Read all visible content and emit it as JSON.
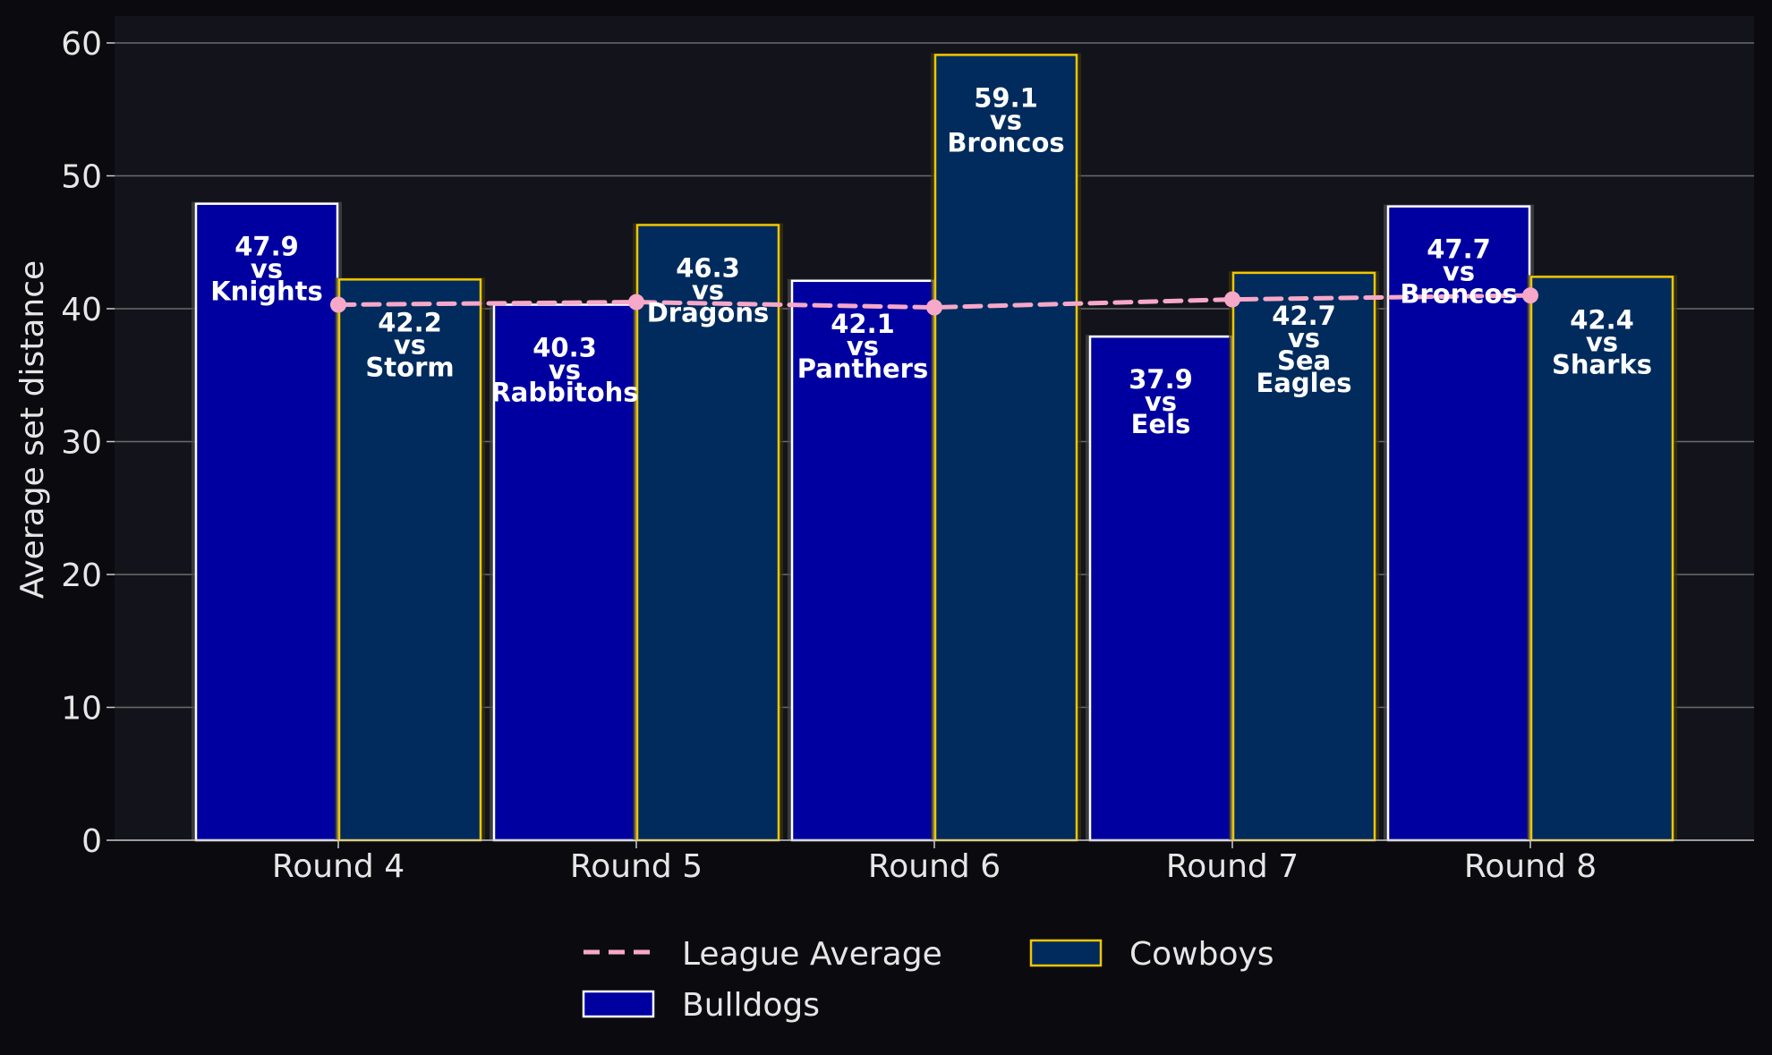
{
  "chart_data": {
    "type": "bar",
    "categories": [
      "Round 4",
      "Round 5",
      "Round 6",
      "Round 7",
      "Round 8"
    ],
    "ylabel": "Average set distance",
    "xlabel": "",
    "ylim": [
      0,
      62
    ],
    "yticks": [
      0,
      10,
      20,
      30,
      40,
      50,
      60
    ],
    "grid": "horizontal",
    "legend_position": "bottom",
    "series": [
      {
        "name": "Bulldogs",
        "kind": "bar",
        "color": "#0000a0",
        "edge_color": "#ffffff",
        "values": [
          47.9,
          40.3,
          42.1,
          37.9,
          47.7
        ],
        "labels": [
          [
            "47.9",
            "vs",
            "Knights"
          ],
          [
            "40.3",
            "vs",
            "Rabbitohs"
          ],
          [
            "42.1",
            "vs",
            "Panthers"
          ],
          [
            "37.9",
            "vs",
            "Eels"
          ],
          [
            "47.7",
            "vs",
            "Broncos"
          ]
        ]
      },
      {
        "name": "Cowboys",
        "kind": "bar",
        "color": "#002b5c",
        "edge_color": "#f2c500",
        "values": [
          42.2,
          46.3,
          59.1,
          42.7,
          42.4
        ],
        "labels": [
          [
            "42.2",
            "vs",
            "Storm"
          ],
          [
            "46.3",
            "vs",
            "Dragons"
          ],
          [
            "59.1",
            "vs",
            "Broncos"
          ],
          [
            "42.7",
            "vs",
            "Sea",
            "Eagles"
          ],
          [
            "42.4",
            "vs",
            "Sharks"
          ]
        ]
      },
      {
        "name": "League Average",
        "kind": "line",
        "style": "dashed",
        "color": "#f7a8c8",
        "values": [
          40.3,
          40.5,
          40.1,
          40.7,
          41.0
        ]
      }
    ],
    "legend": [
      "League Average",
      "Cowboys",
      "Bulldogs"
    ]
  }
}
